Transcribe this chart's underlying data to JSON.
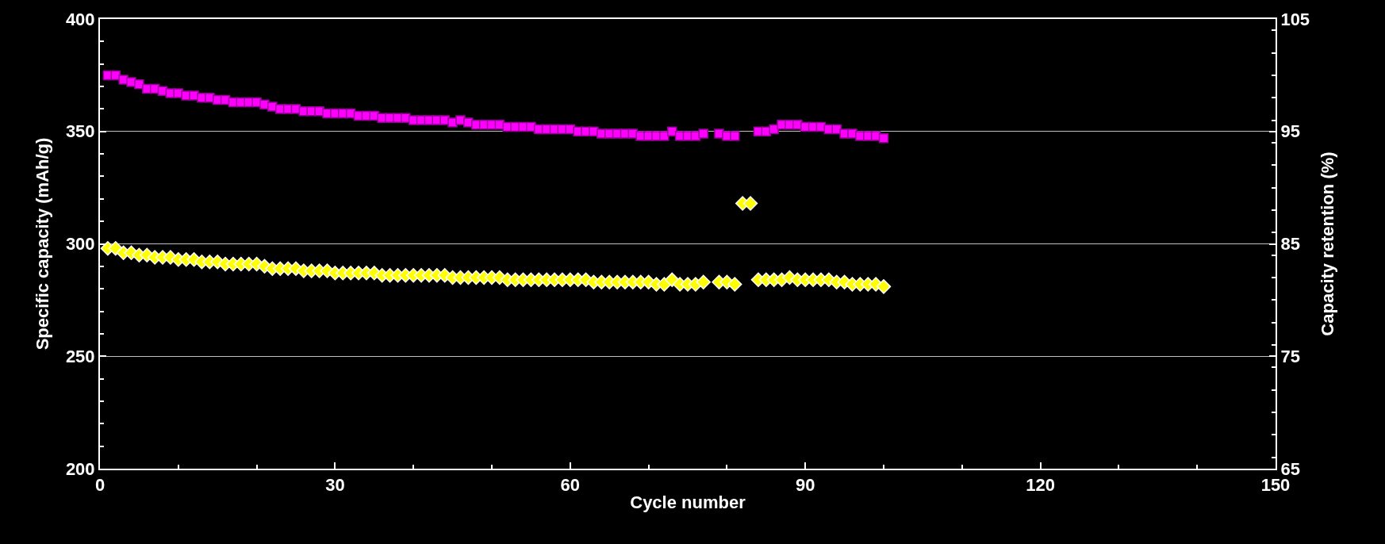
{
  "chart_data": {
    "type": "scatter",
    "xlabel": "Cycle number",
    "ylabel": "Specific capacity (mAh/g)",
    "y2label": "Capacity retention (%)",
    "x": [
      1,
      2,
      3,
      4,
      5,
      6,
      7,
      8,
      9,
      10,
      11,
      12,
      13,
      14,
      15,
      16,
      17,
      18,
      19,
      20,
      21,
      22,
      23,
      24,
      25,
      26,
      27,
      28,
      29,
      30,
      31,
      32,
      33,
      34,
      35,
      36,
      37,
      38,
      39,
      40,
      41,
      42,
      43,
      44,
      45,
      46,
      47,
      48,
      49,
      50,
      51,
      52,
      53,
      54,
      55,
      56,
      57,
      58,
      59,
      60,
      61,
      62,
      63,
      64,
      65,
      66,
      67,
      68,
      69,
      70,
      71,
      72,
      73,
      74,
      75,
      76,
      77,
      78,
      79,
      80,
      81,
      82,
      83,
      84,
      85,
      86,
      87,
      88,
      89,
      90,
      91,
      92,
      93,
      94,
      95,
      96,
      97,
      98,
      99,
      100
    ],
    "series": [
      {
        "color": "#ff00ff",
        "marker": "square",
        "axis": "y2",
        "values": [
          100,
          100,
          99.6,
          99.4,
          99.2,
          98.8,
          98.8,
          98.6,
          98.4,
          98.4,
          98.2,
          98.2,
          98,
          98,
          97.8,
          97.8,
          97.6,
          97.6,
          97.6,
          97.6,
          97.4,
          97.2,
          97,
          97,
          97,
          96.8,
          96.8,
          96.8,
          96.6,
          96.6,
          96.6,
          96.6,
          96.4,
          96.4,
          96.4,
          96.2,
          96.2,
          96.2,
          96.2,
          96,
          96,
          96,
          96,
          96,
          95.8,
          96,
          95.8,
          95.6,
          95.6,
          95.6,
          95.6,
          95.4,
          95.4,
          95.4,
          95.4,
          95.2,
          95.2,
          95.2,
          95.2,
          95.2,
          95,
          95,
          95,
          94.8,
          94.8,
          94.8,
          94.8,
          94.8,
          94.6,
          94.6,
          94.6,
          94.6,
          95,
          94.6,
          94.6,
          94.6,
          94.8,
          null,
          94.8,
          94.6,
          94.6,
          null,
          null,
          95,
          95,
          95.2,
          95.6,
          95.6,
          95.6,
          95.4,
          95.4,
          95.4,
          95.2,
          95.2,
          94.8,
          94.8,
          94.6,
          94.6,
          94.6,
          94.4
        ]
      },
      {
        "color": "#ffff00",
        "marker": "diamond",
        "axis": "y",
        "values": [
          298,
          298,
          296,
          296,
          295,
          295,
          294,
          294,
          294,
          293,
          293,
          293,
          292,
          292,
          292,
          291,
          291,
          291,
          291,
          291,
          290,
          289,
          289,
          289,
          289,
          288,
          288,
          288,
          288,
          287,
          287,
          287,
          287,
          287,
          287,
          286,
          286,
          286,
          286,
          286,
          286,
          286,
          286,
          286,
          285,
          285,
          285,
          285,
          285,
          285,
          285,
          284,
          284,
          284,
          284,
          284,
          284,
          284,
          284,
          284,
          284,
          284,
          283,
          283,
          283,
          283,
          283,
          283,
          283,
          283,
          282,
          282,
          284,
          282,
          282,
          282,
          283,
          null,
          283,
          283,
          282,
          318,
          318,
          284,
          284,
          284,
          284,
          285,
          284,
          284,
          284,
          284,
          284,
          283,
          283,
          282,
          282,
          282,
          282,
          281
        ]
      }
    ],
    "xlim": [
      0,
      150
    ],
    "xticks": [
      0,
      30,
      60,
      90,
      120,
      150
    ],
    "ylim": [
      200,
      400
    ],
    "yticks": [
      200,
      250,
      300,
      350,
      400
    ],
    "y2lim": [
      65,
      105
    ],
    "y2ticks": [
      65,
      75,
      85,
      95,
      105
    ],
    "grid": "y"
  }
}
